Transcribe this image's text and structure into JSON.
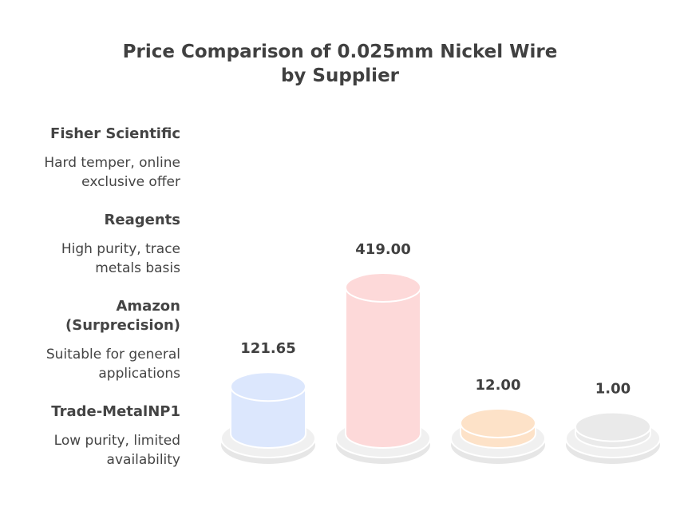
{
  "title_line1": "Price Comparison of 0.025mm Nickel Wire",
  "title_line2": "by Supplier",
  "chart_data": {
    "type": "bar",
    "title": "Price Comparison of 0.025mm Nickel Wire by Supplier",
    "categories": [
      "Amazon (Surprecision)",
      "Reagents",
      "Fisher Scientific",
      "Trade-MetalNP1"
    ],
    "values": [
      121.65,
      419.0,
      12.0,
      1.0
    ],
    "value_labels": [
      "121.65",
      "419.00",
      "12.00",
      "1.00"
    ],
    "colors": [
      "#dce7fd",
      "#fdd9d9",
      "#fde2c8",
      "#eaeaea"
    ],
    "ylim": [
      0,
      419
    ],
    "grid": false
  },
  "legend": [
    {
      "name": "Fisher Scientific",
      "desc": "Hard temper, online exclusive offer"
    },
    {
      "name": "Reagents",
      "desc": "High purity, trace metals basis"
    },
    {
      "name": "Amazon (Surprecision)",
      "desc": "Suitable for general applications"
    },
    {
      "name": "Trade-MetalNP1",
      "desc": "Low purity, limited availability"
    }
  ]
}
